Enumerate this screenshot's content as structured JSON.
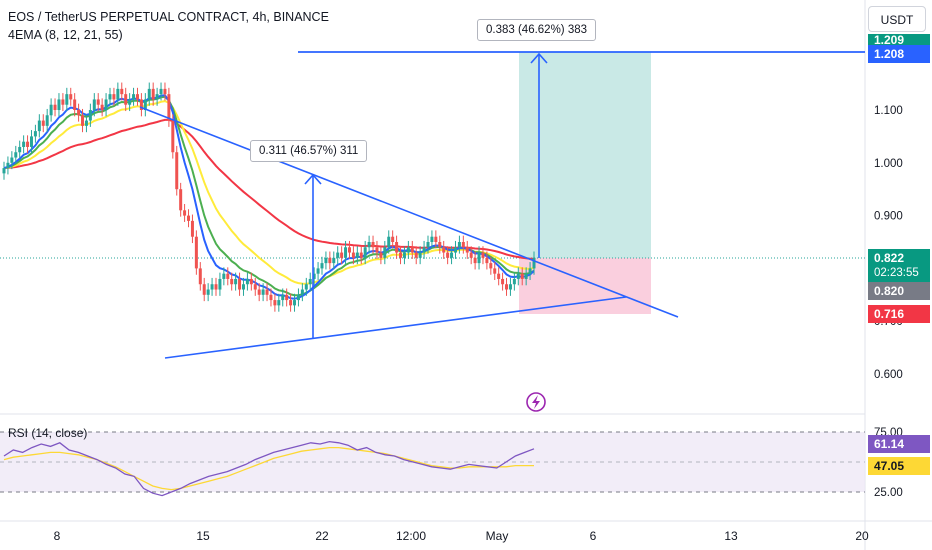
{
  "header": {
    "title": "EOS / TetherUS PERPETUAL CONTRACT, 4h, BINANCE",
    "indicator": "4EMA (8, 12, 21, 55)"
  },
  "currency_button": "USDT",
  "rsi_label": "RSI (14, close)",
  "price_boxes": {
    "target_hidden": "1.209",
    "target": "1.208",
    "last": "0.822",
    "countdown": "02:23:55",
    "close": "0.820",
    "stop": "0.716",
    "rsi_value": "61.14",
    "rsi_ma": "47.05"
  },
  "measurements": {
    "pattern_move": "0.311 (46.57%) 311",
    "projection": "0.383 (46.62%) 383"
  },
  "colors": {
    "up": "#26a69a",
    "down": "#ef5350",
    "drawing": "#2962ff",
    "ema8": "#2962ff",
    "ema12": "#4caf50",
    "ema21": "#ffeb3b",
    "ema55": "#f23645",
    "rsi": "#7e57c2",
    "rsi_ma": "#fdd835",
    "target_zone": "#b2dfdb",
    "stop_zone": "#f8bbd0",
    "lightning": "#9c27b0"
  },
  "chart_data": {
    "type": "candlestick",
    "title": "EOS / TetherUS PERPETUAL CONTRACT, 4h, BINANCE",
    "y_axis": {
      "ticks": [
        "1.100",
        "1.000",
        "0.900",
        "0.800",
        "0.700",
        "0.600"
      ],
      "range": [
        0.57,
        1.25
      ]
    },
    "x_axis": {
      "ticks": [
        "8",
        "15",
        "22",
        "12:00",
        "May",
        "6",
        "13",
        "20"
      ]
    },
    "rsi_axis": {
      "ticks": [
        "75.00",
        "50.00",
        "25.00"
      ],
      "range": [
        15,
        80
      ]
    },
    "series": [
      {
        "name": "Price",
        "closes": [
          0.99,
          1.0,
          1.01,
          1.02,
          1.03,
          1.04,
          1.03,
          1.05,
          1.06,
          1.08,
          1.07,
          1.09,
          1.11,
          1.1,
          1.12,
          1.11,
          1.13,
          1.12,
          1.1,
          1.09,
          1.07,
          1.08,
          1.1,
          1.12,
          1.11,
          1.1,
          1.12,
          1.13,
          1.12,
          1.14,
          1.13,
          1.11,
          1.12,
          1.13,
          1.12,
          1.1,
          1.12,
          1.14,
          1.12,
          1.13,
          1.14,
          1.13,
          1.08,
          1.02,
          0.95,
          0.91,
          0.9,
          0.89,
          0.86,
          0.8,
          0.77,
          0.75,
          0.76,
          0.77,
          0.76,
          0.78,
          0.79,
          0.78,
          0.77,
          0.78,
          0.76,
          0.77,
          0.78,
          0.77,
          0.76,
          0.75,
          0.76,
          0.75,
          0.74,
          0.73,
          0.74,
          0.75,
          0.74,
          0.73,
          0.74,
          0.75,
          0.76,
          0.77,
          0.78,
          0.79,
          0.8,
          0.81,
          0.82,
          0.81,
          0.82,
          0.83,
          0.82,
          0.84,
          0.83,
          0.82,
          0.83,
          0.82,
          0.84,
          0.85,
          0.84,
          0.83,
          0.82,
          0.84,
          0.86,
          0.85,
          0.83,
          0.82,
          0.83,
          0.84,
          0.83,
          0.82,
          0.83,
          0.84,
          0.85,
          0.86,
          0.85,
          0.84,
          0.83,
          0.82,
          0.83,
          0.84,
          0.85,
          0.84,
          0.83,
          0.82,
          0.81,
          0.83,
          0.82,
          0.81,
          0.8,
          0.79,
          0.78,
          0.77,
          0.76,
          0.77,
          0.78,
          0.79,
          0.78,
          0.79,
          0.8,
          0.82
        ]
      },
      {
        "name": "RSI",
        "values": [
          55,
          60,
          58,
          62,
          65,
          63,
          66,
          60,
          58,
          55,
          52,
          48,
          45,
          40,
          38,
          28,
          24,
          22,
          25,
          28,
          32,
          35,
          38,
          40,
          42,
          45,
          48,
          52,
          55,
          58,
          60,
          62,
          64,
          66,
          65,
          67,
          66,
          64,
          60,
          62,
          58,
          56,
          55,
          52,
          50,
          48,
          46,
          45,
          44,
          46,
          48,
          47,
          46,
          45,
          50,
          55,
          58,
          61
        ]
      },
      {
        "name": "RSI MA",
        "values": [
          52,
          54,
          55,
          56,
          57,
          58,
          58,
          57,
          56,
          54,
          52,
          49,
          46,
          42,
          38,
          34,
          30,
          28,
          27,
          28,
          30,
          32,
          34,
          36,
          38,
          41,
          44,
          47,
          50,
          53,
          55,
          57,
          59,
          60,
          61,
          62,
          62,
          61,
          60,
          59,
          58,
          57,
          55,
          53,
          51,
          49,
          47,
          46,
          45,
          45,
          46,
          46,
          46,
          46,
          46,
          47,
          47,
          47
        ]
      }
    ]
  }
}
